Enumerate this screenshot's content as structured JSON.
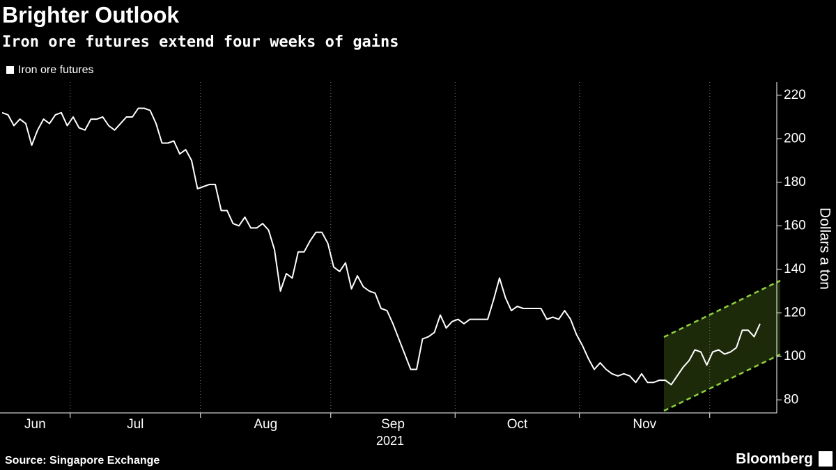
{
  "chart_data": {
    "type": "line",
    "title": "Brighter Outlook",
    "subtitle": "Iron ore futures extend four weeks of gains",
    "y_label": "Dollars a ton",
    "x_label": "2021",
    "source": "Source: Singapore Exchange",
    "brand": "Bloomberg",
    "categories": [
      "Jun",
      "Jul",
      "Aug",
      "Sep",
      "Oct",
      "Nov",
      null
    ],
    "series": [
      {
        "name": "Iron ore futures",
        "color": "#ffffff",
        "values": [
          [
            212,
            211,
            206,
            209,
            207,
            197,
            204,
            209,
            207,
            211,
            212,
            206
          ],
          [
            210,
            205,
            204,
            209,
            209,
            210,
            206,
            204,
            207,
            210,
            210,
            214,
            214,
            213,
            207,
            198,
            198,
            199,
            193,
            195,
            190,
            177
          ],
          [
            178,
            179,
            179,
            167,
            167,
            161,
            160,
            164,
            159,
            159,
            161,
            158,
            149,
            130,
            138,
            136,
            148,
            148,
            153,
            157,
            157,
            152
          ],
          [
            141,
            139,
            143,
            131,
            137,
            132,
            130,
            129,
            122,
            121,
            115,
            108,
            101,
            94,
            94,
            108,
            109,
            111,
            119,
            113,
            116
          ],
          [
            117,
            115,
            117,
            117,
            117,
            117,
            126,
            136,
            127,
            121,
            123,
            122,
            122,
            122,
            122,
            117,
            118,
            117,
            121,
            117,
            110
          ],
          [
            105,
            99,
            94,
            97,
            94,
            92,
            91,
            92,
            91,
            88,
            92,
            88,
            88,
            89,
            89,
            87,
            91,
            95,
            98,
            103,
            102,
            96
          ],
          [
            102,
            103,
            101,
            102,
            104,
            112,
            112,
            109,
            115
          ]
        ]
      }
    ],
    "ylim": [
      74,
      226
    ],
    "yticks": [
      80,
      100,
      120,
      140,
      160,
      180,
      200,
      220
    ],
    "legend": "top-left",
    "grid": true
  }
}
